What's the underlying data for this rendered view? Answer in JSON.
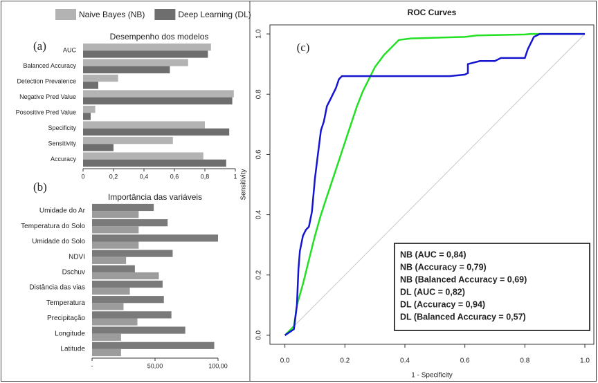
{
  "chart_data": [
    {
      "type": "hbar",
      "title": "Desempenho dos modelos",
      "panel_label": "(a)",
      "legend": "top",
      "categories": [
        "AUC",
        "Balanced Accuracy",
        "Detection Prevalence",
        "Negative Pred Value",
        "Posositive Pred Value",
        "Specificity",
        "Sensitivity",
        "Accuracy"
      ],
      "series": [
        {
          "name": "Naive Bayes (NB)",
          "color": "#b3b3b3",
          "values": [
            0.84,
            0.69,
            0.23,
            0.99,
            0.08,
            0.8,
            0.59,
            0.79
          ]
        },
        {
          "name": "Deep Learning (DL)",
          "color": "#6e6e6e",
          "values": [
            0.82,
            0.57,
            0.1,
            0.98,
            0.05,
            0.96,
            0.2,
            0.94
          ]
        }
      ],
      "xlim": [
        0,
        1
      ],
      "xticks": [
        0,
        {
          "value": 0.2,
          "label": "0,2"
        },
        {
          "value": 0.4,
          "label": "0,4"
        },
        {
          "value": 0.6,
          "label": "0,6"
        },
        {
          "value": 0.8,
          "label": "0,8"
        },
        1
      ]
    },
    {
      "type": "hbar",
      "title": "Importância das variáveis",
      "panel_label": "(b)",
      "categories": [
        "Umidade do Ar",
        "Temperatura do Solo",
        "Umidade do Solo",
        "NDVI",
        "Dschuv",
        "Distância das vias",
        "Temperatura",
        "Precipitação",
        "Longitude",
        "Latitude"
      ],
      "series": [
        {
          "color": "#7a7a7a",
          "values": [
            49,
            60,
            100,
            64,
            34,
            56,
            57,
            63,
            74,
            97
          ]
        },
        {
          "color": "#9c9c9c",
          "values": [
            37,
            37,
            37,
            27,
            53,
            30,
            25,
            36,
            23,
            23
          ]
        }
      ],
      "xlim": [
        0,
        100
      ],
      "xticks": [
        {
          "value": 0,
          "label": "-"
        },
        {
          "value": 50,
          "label": "50,00"
        },
        {
          "value": 100,
          "label": "100,00"
        }
      ]
    },
    {
      "type": "line",
      "title": "ROC Curves",
      "panel_label": "(c)",
      "x_label": "1 - Specificity",
      "y_label": "Sensitivity",
      "series": [
        {
          "color": "#c8c8c8",
          "x": [
            0,
            1
          ],
          "values": [
            0,
            1
          ]
        },
        {
          "color": "#22e022",
          "x": [
            0,
            0.02,
            0.03,
            0.04,
            0.06,
            0.08,
            0.1,
            0.12,
            0.14,
            0.16,
            0.18,
            0.2,
            0.22,
            0.24,
            0.26,
            0.28,
            0.3,
            0.33,
            0.36,
            0.38,
            0.42,
            0.6,
            0.64,
            0.8,
            0.82,
            1
          ],
          "values": [
            0,
            0.02,
            0.03,
            0.1,
            0.17,
            0.25,
            0.33,
            0.4,
            0.46,
            0.52,
            0.58,
            0.64,
            0.7,
            0.76,
            0.81,
            0.85,
            0.89,
            0.93,
            0.96,
            0.98,
            0.985,
            0.99,
            0.995,
            0.998,
            1,
            1
          ]
        },
        {
          "color": "#1515d0",
          "x": [
            0,
            0.03,
            0.04,
            0.045,
            0.05,
            0.06,
            0.07,
            0.08,
            0.09,
            0.1,
            0.11,
            0.12,
            0.13,
            0.14,
            0.15,
            0.16,
            0.17,
            0.18,
            0.19,
            0.55,
            0.6,
            0.61,
            0.61,
            0.65,
            0.7,
            0.72,
            0.8,
            0.81,
            0.82,
            0.83,
            0.85,
            1
          ],
          "values": [
            0,
            0.02,
            0.1,
            0.22,
            0.28,
            0.33,
            0.35,
            0.36,
            0.41,
            0.52,
            0.6,
            0.68,
            0.71,
            0.76,
            0.78,
            0.8,
            0.82,
            0.85,
            0.86,
            0.86,
            0.865,
            0.87,
            0.9,
            0.91,
            0.91,
            0.92,
            0.92,
            0.95,
            0.97,
            0.99,
            1,
            1
          ]
        }
      ],
      "xlim": [
        -0.05,
        1.03
      ],
      "ylim": [
        -0.03,
        1.03
      ],
      "xticks": [
        {
          "value": 0,
          "label": "0.0"
        },
        {
          "value": 0.2,
          "label": "0.2"
        },
        {
          "value": 0.4,
          "label": "0.4"
        },
        {
          "value": 0.6,
          "label": "0.6"
        },
        {
          "value": 0.8,
          "label": "0.8"
        },
        {
          "value": 1,
          "label": "1.0"
        }
      ],
      "yticks": [
        {
          "value": 0,
          "label": "0.0"
        },
        {
          "value": 0.2,
          "label": "0.2"
        },
        {
          "value": 0.4,
          "label": "0.4"
        },
        {
          "value": 0.6,
          "label": "0.6"
        },
        {
          "value": 0.8,
          "label": "0.8"
        },
        {
          "value": 1,
          "label": "1.0"
        }
      ],
      "annotations": [
        {
          "text": "NB (AUC = 0,84)",
          "color": "#22e022"
        },
        {
          "text": "NB (Accuracy = 0,79)",
          "color": "#22e022"
        },
        {
          "text": "NB (Balanced Accuracy = 0,69)",
          "color": "#22e022"
        },
        {
          "text": "DL (AUC = 0,82)",
          "color": "#1515d0"
        },
        {
          "text": "DL (Accuracy = 0,94)",
          "color": "#1515d0"
        },
        {
          "text": "DL (Balanced Accuracy = 0,57)",
          "color": "#1515d0"
        }
      ]
    }
  ]
}
